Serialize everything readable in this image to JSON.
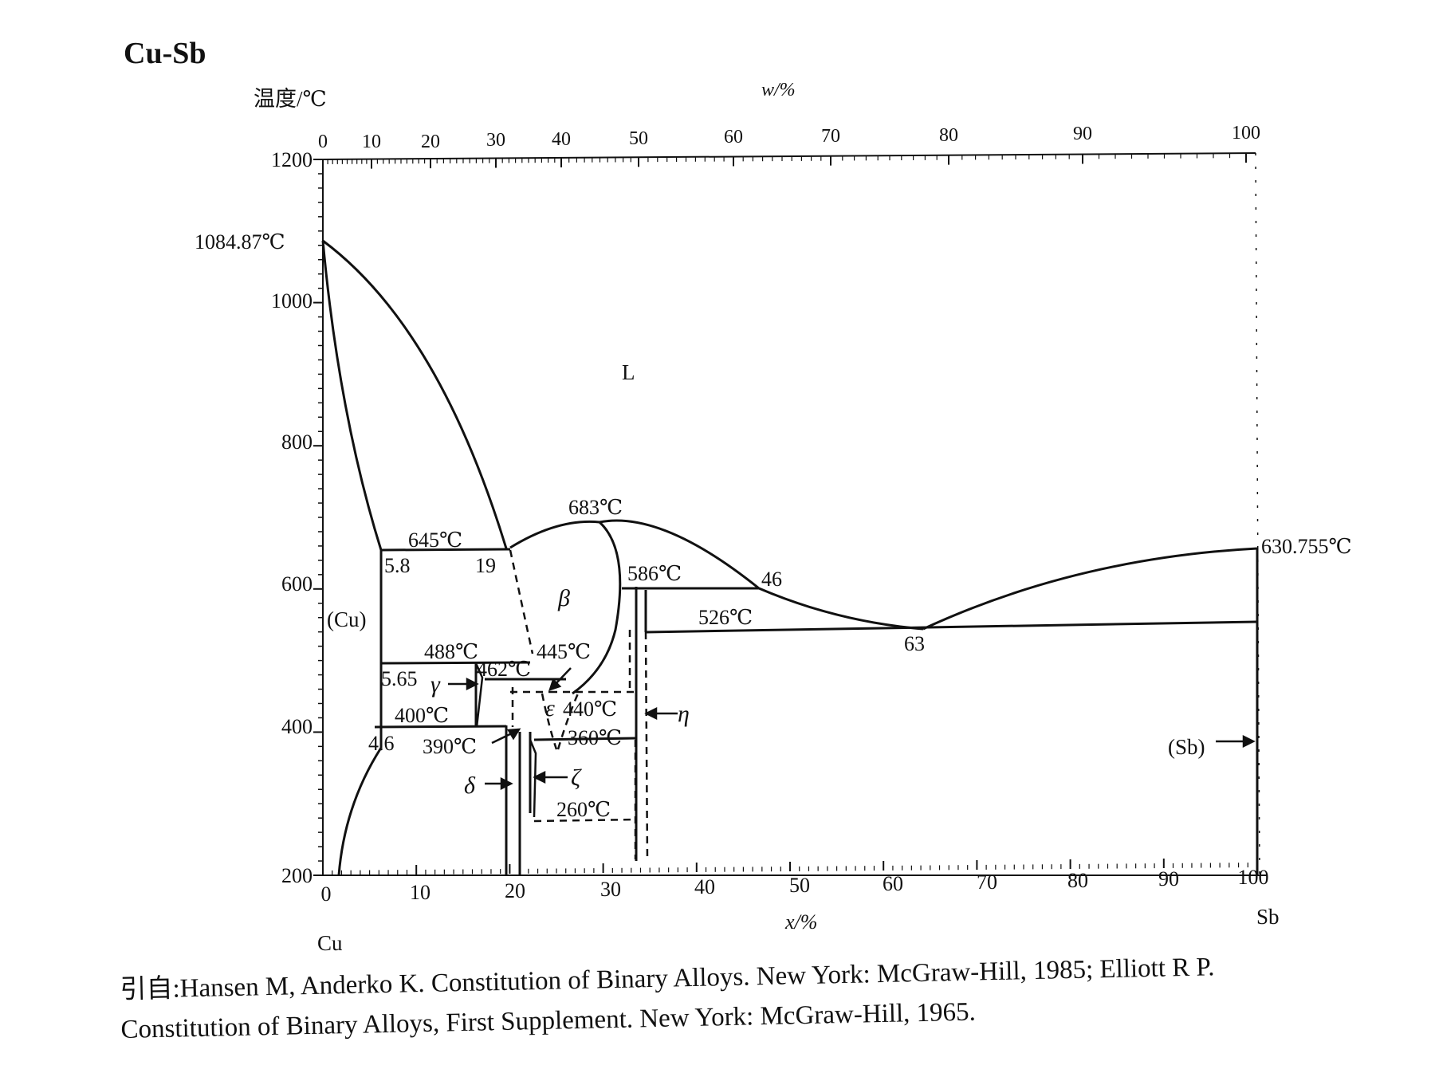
{
  "title": "Cu-Sb",
  "axes": {
    "temp_unit": "温度/℃",
    "w_unit": "w/%",
    "x_unit": "x/%",
    "y_ticks": [
      "1200",
      "1000",
      "800",
      "600",
      "400",
      "200"
    ],
    "top_ticks": [
      "0",
      "10",
      "20",
      "30",
      "40",
      "50",
      "60",
      "70",
      "80",
      "90",
      "100"
    ],
    "bottom_ticks": [
      "0",
      "10",
      "20",
      "30",
      "40",
      "50",
      "60",
      "70",
      "80",
      "90",
      "100"
    ],
    "left_element": "Cu",
    "right_element": "Sb"
  },
  "annotations": {
    "cu_melt": "1084.87℃",
    "sb_melt": "630.755℃",
    "liquid": "L",
    "cu_phase": "(Cu)",
    "sb_phase": "(Sb)",
    "beta": "β",
    "gamma": "γ",
    "delta": "δ",
    "epsilon": "ε",
    "zeta": "ζ",
    "eta": "η",
    "t645": "645℃",
    "t683": "683℃",
    "t586": "586℃",
    "t526": "526℃",
    "t488": "488℃",
    "t462": "462℃",
    "t445": "445℃",
    "t440": "440℃",
    "t400": "400℃",
    "t390": "390℃",
    "t360": "360℃",
    "t260": "260℃",
    "c58": "5.8",
    "c19": "19",
    "c46": "46",
    "c63": "63",
    "c565": "5.65",
    "c46b": "4.6"
  },
  "reference": {
    "line1": "引自:Hansen M, Anderko K. Constitution of Binary Alloys. New York: McGraw-Hill, 1985; Elliott R P.",
    "line2": "Constitution of Binary Alloys, First Supplement. New York: McGraw-Hill, 1965."
  }
}
